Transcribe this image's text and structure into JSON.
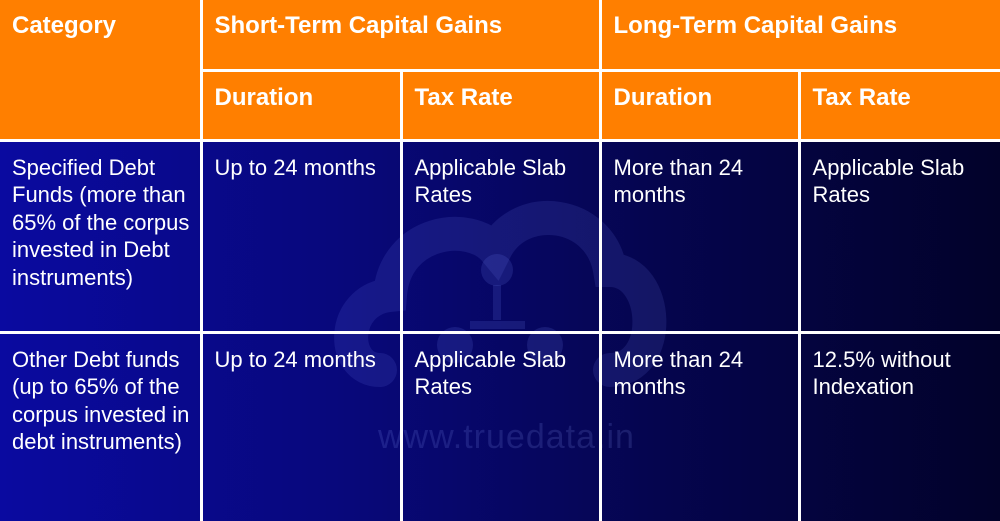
{
  "table": {
    "header_row1": {
      "category": "Category",
      "short_term": "Short-Term Capital Gains",
      "long_term": "Long-Term Capital Gains"
    },
    "header_row2": {
      "st_duration": "Duration",
      "st_tax_rate": "Tax Rate",
      "lt_duration": "Duration",
      "lt_tax_rate": "Tax Rate"
    },
    "rows": [
      {
        "category": "Specified Debt Funds (more than 65% of the corpus invested in Debt instruments)",
        "st_duration": "Up to 24 months",
        "st_tax_rate": "Applicable Slab Rates",
        "lt_duration": "More than 24 months",
        "lt_tax_rate": "Applicable Slab Rates"
      },
      {
        "category": "Other Debt funds (up to 65% of the corpus invested in debt instruments)",
        "st_duration": "Up to 24 months",
        "st_tax_rate": "Applicable Slab Rates",
        "lt_duration": "More than 24 months",
        "lt_tax_rate": "12.5% without Indexation"
      }
    ]
  },
  "watermark": {
    "text": "www.truedata.in",
    "icon": "truedata-cloud-logo"
  },
  "colors": {
    "header_bg": "#ff7f00",
    "body_bg_left": "#0a0aa0",
    "body_bg_right": "#02022a",
    "border": "#ffffff",
    "text": "#ffffff"
  }
}
